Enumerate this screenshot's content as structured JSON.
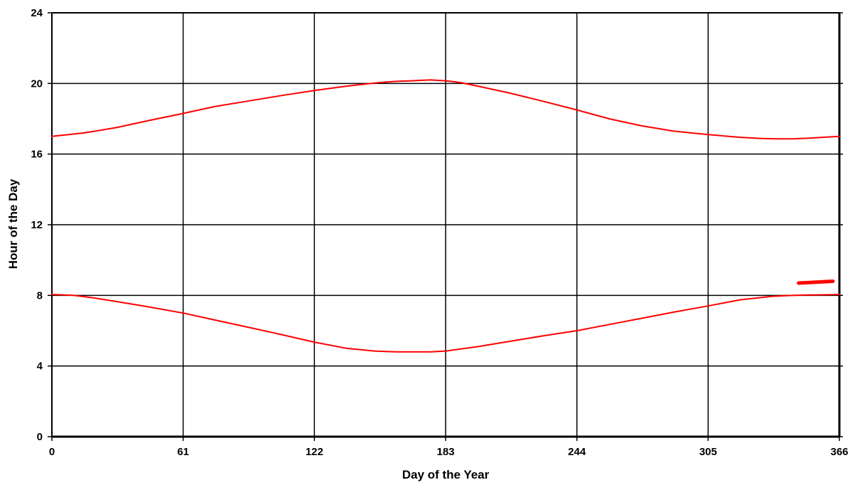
{
  "chart_data": {
    "type": "line",
    "title": "",
    "xlabel": "Day of the Year",
    "ylabel": "Hour of the Day",
    "xlim": [
      0,
      366
    ],
    "ylim": [
      0,
      24
    ],
    "x_ticks": [
      "0",
      "61",
      "122",
      "183",
      "244",
      "305",
      "366"
    ],
    "y_ticks": [
      "0",
      "4",
      "8",
      "12",
      "16",
      "20",
      "24"
    ],
    "grid": true,
    "legend": "none",
    "series": [
      {
        "color": "#ff0000",
        "x": [
          0,
          15,
          30,
          45,
          61,
          76,
          91,
          106,
          122,
          137,
          152,
          160,
          167,
          172,
          176,
          183,
          190,
          198,
          213,
          228,
          244,
          259,
          274,
          289,
          305,
          320,
          330,
          338,
          345,
          352,
          358,
          366
        ],
        "y": [
          17.0,
          17.2,
          17.5,
          17.9,
          18.3,
          18.7,
          19.0,
          19.3,
          19.6,
          19.85,
          20.05,
          20.12,
          20.15,
          20.18,
          20.2,
          20.15,
          20.05,
          19.85,
          19.45,
          19.0,
          18.5,
          18.0,
          17.6,
          17.3,
          17.1,
          16.95,
          16.88,
          16.86,
          16.87,
          16.9,
          16.95,
          17.0
        ]
      },
      {
        "color": "#ff0000",
        "x": [
          0,
          10,
          20,
          30,
          45,
          61,
          76,
          91,
          106,
          122,
          137,
          150,
          160,
          167,
          172,
          176,
          183,
          198,
          213,
          228,
          244,
          259,
          274,
          289,
          305,
          320,
          335,
          345,
          352,
          358,
          366
        ],
        "y": [
          8.05,
          8.0,
          7.85,
          7.65,
          7.35,
          7.0,
          6.6,
          6.2,
          5.8,
          5.35,
          5.0,
          4.85,
          4.8,
          4.8,
          4.8,
          4.8,
          4.85,
          5.1,
          5.4,
          5.7,
          6.0,
          6.35,
          6.7,
          7.05,
          7.4,
          7.75,
          7.95,
          8.0,
          8.02,
          8.03,
          8.05
        ]
      },
      {
        "color": "#ff0000",
        "x": [
          347,
          363
        ],
        "y": [
          8.7,
          8.8
        ]
      }
    ]
  }
}
